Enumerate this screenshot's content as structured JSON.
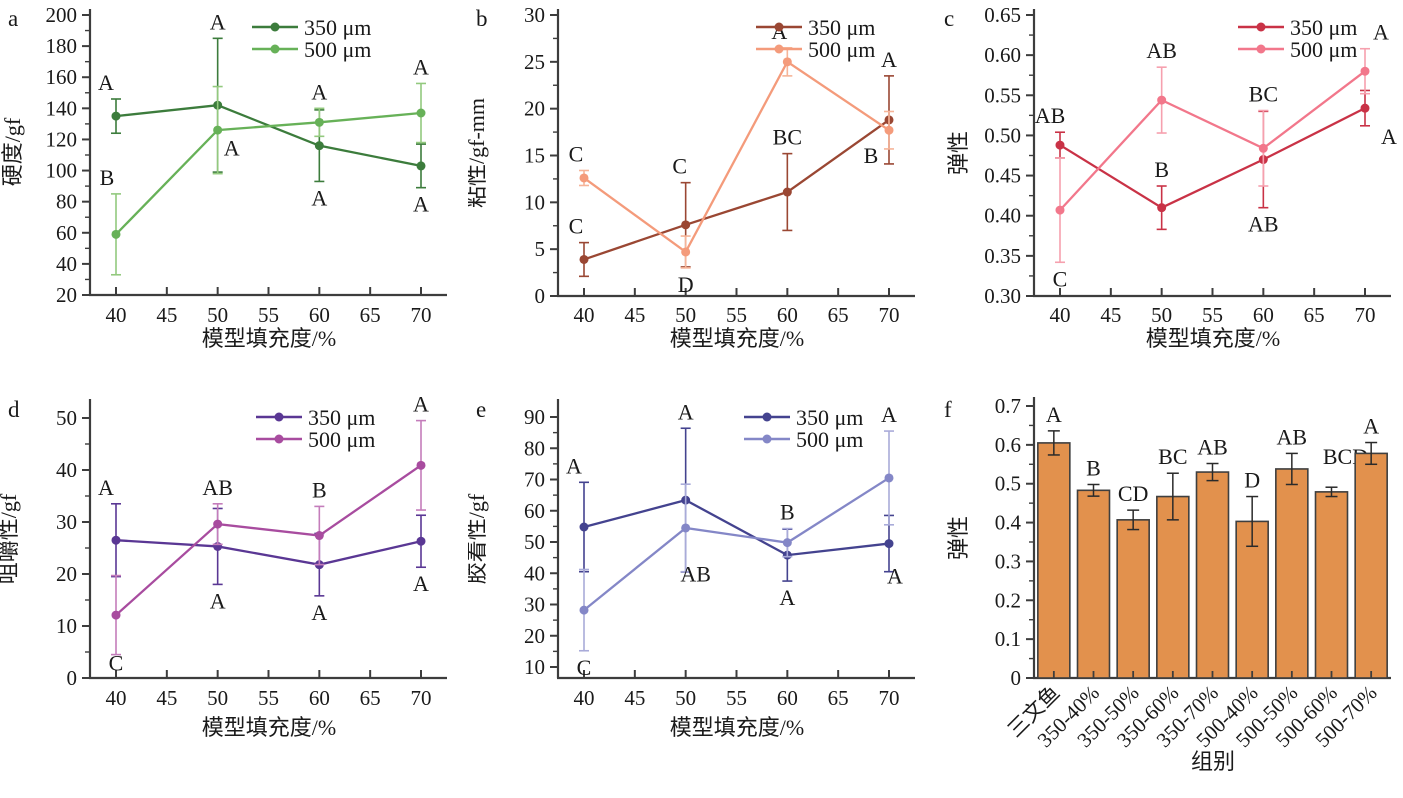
{
  "figure": {
    "background": "#ffffff",
    "text_color": "#1a1a1a",
    "axis_color": "#3d3d3d",
    "panel_labels": [
      "a",
      "b",
      "c",
      "d",
      "e",
      "f"
    ]
  },
  "chart_data": [
    {
      "id": "a",
      "type": "line",
      "panel_label": "a",
      "xlabel": "模型填充度/%",
      "ylabel": "硬度/gf",
      "x": [
        40,
        50,
        60,
        70
      ],
      "xticks": [
        40,
        45,
        50,
        55,
        60,
        65,
        70
      ],
      "ylim": [
        20,
        200
      ],
      "yticks": [
        20,
        40,
        60,
        80,
        100,
        120,
        140,
        160,
        180,
        200
      ],
      "yminor": 10,
      "ydecimals": 0,
      "grid": false,
      "legend_position": "top-right",
      "series": [
        {
          "name": "350 μm",
          "color": "#3c7c3c",
          "err_color": "#3c7c3c",
          "values": [
            135,
            142,
            116,
            103
          ],
          "errors": [
            11,
            43,
            23,
            14
          ],
          "letters": [
            {
              "t": "A",
              "pos": "above",
              "dx": -10
            },
            {
              "t": "A",
              "pos": "above"
            },
            {
              "t": "A",
              "pos": "below"
            },
            {
              "t": "A",
              "pos": "below"
            }
          ]
        },
        {
          "name": "500 μm",
          "color": "#67b158",
          "err_color": "#93c97e",
          "values": [
            59,
            126,
            131,
            137
          ],
          "errors": [
            26,
            28,
            9,
            19
          ],
          "letters": [
            {
              "t": "B",
              "pos": "above",
              "dx": -9
            },
            {
              "t": "A",
              "pos": "below",
              "dx": 14,
              "dy": -42
            },
            {
              "t": "A",
              "pos": "above"
            },
            {
              "t": "A",
              "pos": "above"
            }
          ]
        }
      ]
    },
    {
      "id": "b",
      "type": "line",
      "panel_label": "b",
      "xlabel": "模型填充度/%",
      "ylabel": "粘性/gf-mm",
      "x": [
        40,
        50,
        60,
        70
      ],
      "xticks": [
        40,
        45,
        50,
        55,
        60,
        65,
        70
      ],
      "ylim": [
        0,
        30
      ],
      "yticks": [
        0,
        5,
        10,
        15,
        20,
        25,
        30
      ],
      "yminor": 2.5,
      "ydecimals": 0,
      "grid": false,
      "legend_position": "top-right",
      "series": [
        {
          "name": "350 μm",
          "color": "#9a4733",
          "err_color": "#9a4733",
          "values": [
            3.9,
            7.6,
            11.1,
            18.8
          ],
          "errors": [
            1.8,
            4.5,
            4.1,
            4.7
          ],
          "letters": [
            {
              "t": "C",
              "pos": "above",
              "dx": -8
            },
            {
              "t": "C",
              "pos": "above",
              "dx": -6
            },
            {
              "t": "BC",
              "pos": "above"
            },
            {
              "t": "A",
              "pos": "above"
            }
          ]
        },
        {
          "name": "500 μm",
          "color": "#f49b7b",
          "err_color": "#f6b498",
          "values": [
            12.6,
            4.7,
            25.0,
            17.7
          ],
          "errors": [
            0.8,
            1.7,
            1.5,
            2.0
          ],
          "letters": [
            {
              "t": "C",
              "pos": "above",
              "dx": -8
            },
            {
              "t": "D",
              "pos": "below"
            },
            {
              "t": "A",
              "pos": "above",
              "dx": -8
            },
            {
              "t": "B",
              "pos": "below",
              "dx": -18,
              "dy": -10
            }
          ]
        }
      ]
    },
    {
      "id": "c",
      "type": "line",
      "panel_label": "c",
      "xlabel": "模型填充度/%",
      "ylabel": "弹性",
      "x": [
        40,
        50,
        60,
        70
      ],
      "xticks": [
        40,
        45,
        50,
        55,
        60,
        65,
        70
      ],
      "ylim": [
        0.3,
        0.65
      ],
      "yticks": [
        0.3,
        0.35,
        0.4,
        0.45,
        0.5,
        0.55,
        0.6,
        0.65
      ],
      "yminor": 0.025,
      "ydecimals": 2,
      "grid": false,
      "legend_position": "top-right",
      "series": [
        {
          "name": "350 μm",
          "color": "#c93246",
          "err_color": "#c93246",
          "values": [
            0.488,
            0.41,
            0.47,
            0.534
          ],
          "errors": [
            0.016,
            0.027,
            0.06,
            0.022
          ],
          "letters": [
            {
              "t": "AB",
              "pos": "above",
              "dx": -10
            },
            {
              "t": "B",
              "pos": "above"
            },
            {
              "t": "AB",
              "pos": "below"
            },
            {
              "t": "A",
              "pos": "below",
              "dx": 24,
              "dy": -6
            }
          ]
        },
        {
          "name": "500 μm",
          "color": "#f2778b",
          "err_color": "#f6a0ae",
          "values": [
            0.407,
            0.544,
            0.484,
            0.58
          ],
          "errors": [
            0.065,
            0.041,
            0.047,
            0.028
          ],
          "letters": [
            {
              "t": "C",
              "pos": "below"
            },
            {
              "t": "AB",
              "pos": "above"
            },
            {
              "t": "BC",
              "pos": "above"
            },
            {
              "t": "A",
              "pos": "above",
              "dx": 16
            }
          ]
        }
      ]
    },
    {
      "id": "d",
      "type": "line",
      "panel_label": "d",
      "xlabel": "模型填充度/%",
      "ylabel": "咀嚼性/gf",
      "x": [
        40,
        50,
        60,
        70
      ],
      "xticks": [
        40,
        45,
        50,
        55,
        60,
        65,
        70
      ],
      "ylim": [
        0,
        50
      ],
      "yticks": [
        0,
        10,
        20,
        30,
        40,
        50
      ],
      "yminor": 5,
      "ydecimals": 0,
      "grid": false,
      "legend_position": "top-right",
      "series": [
        {
          "name": "350 μm",
          "color": "#5a3794",
          "err_color": "#5a3794",
          "values": [
            26.5,
            25.3,
            21.8,
            26.3
          ],
          "errors": [
            7.0,
            7.3,
            6.0,
            5.0
          ],
          "letters": [
            {
              "t": "A",
              "pos": "above",
              "dx": -10
            },
            {
              "t": "A",
              "pos": "below"
            },
            {
              "t": "A",
              "pos": "below"
            },
            {
              "t": "A",
              "pos": "below"
            }
          ]
        },
        {
          "name": "500 μm",
          "color": "#a84c9f",
          "err_color": "#c47dbb",
          "values": [
            12.1,
            29.6,
            27.4,
            40.9
          ],
          "errors": [
            7.6,
            3.9,
            5.6,
            8.6
          ],
          "letters": [
            {
              "t": "C",
              "pos": "below",
              "dy": -8
            },
            {
              "t": "AB",
              "pos": "above"
            },
            {
              "t": "B",
              "pos": "above"
            },
            {
              "t": "A",
              "pos": "above"
            }
          ]
        }
      ]
    },
    {
      "id": "e",
      "type": "line",
      "panel_label": "e",
      "xlabel": "模型填充度/%",
      "ylabel": "胶着性/gf",
      "x": [
        40,
        50,
        60,
        70
      ],
      "xticks": [
        40,
        45,
        50,
        55,
        60,
        65,
        70
      ],
      "ylim": [
        10,
        90
      ],
      "yticks": [
        10,
        20,
        30,
        40,
        50,
        60,
        70,
        80,
        90
      ],
      "yminor": 5,
      "ydecimals": 0,
      "grid": false,
      "legend_position": "top-right",
      "series": [
        {
          "name": "350 μm",
          "color": "#44438f",
          "err_color": "#44438f",
          "values": [
            54.8,
            63.4,
            45.8,
            49.5
          ],
          "errors": [
            14.3,
            23.0,
            8.3,
            9.0
          ],
          "letters": [
            {
              "t": "A",
              "pos": "above",
              "dx": -10
            },
            {
              "t": "A",
              "pos": "above"
            },
            {
              "t": "A",
              "pos": "below"
            },
            {
              "t": "A",
              "pos": "below",
              "dx": 6,
              "dy": -12
            }
          ]
        },
        {
          "name": "500 μm",
          "color": "#8487c7",
          "err_color": "#a9abd9",
          "values": [
            28.2,
            54.5,
            49.8,
            70.5
          ],
          "errors": [
            13.0,
            14.0,
            4.5,
            15.0
          ],
          "letters": [
            {
              "t": "C",
              "pos": "below"
            },
            {
              "t": "AB",
              "pos": "below",
              "dx": 10,
              "dy": -14
            },
            {
              "t": "B",
              "pos": "above"
            },
            {
              "t": "A",
              "pos": "above"
            }
          ]
        }
      ]
    },
    {
      "id": "f",
      "type": "bar",
      "panel_label": "f",
      "xlabel": "组别",
      "ylabel": "弹性",
      "categories": [
        "三文鱼",
        "350-40%",
        "350-50%",
        "350-60%",
        "350-70%",
        "500-40%",
        "500-50%",
        "500-60%",
        "500-70%"
      ],
      "values": [
        0.605,
        0.483,
        0.407,
        0.467,
        0.53,
        0.403,
        0.538,
        0.479,
        0.578
      ],
      "errors": [
        0.031,
        0.015,
        0.025,
        0.06,
        0.022,
        0.064,
        0.04,
        0.012,
        0.028
      ],
      "letters": [
        {
          "t": "A",
          "pos": "above"
        },
        {
          "t": "B",
          "pos": "above"
        },
        {
          "t": "CD",
          "pos": "above"
        },
        {
          "t": "BC",
          "pos": "above"
        },
        {
          "t": "AB",
          "pos": "above"
        },
        {
          "t": "D",
          "pos": "above"
        },
        {
          "t": "AB",
          "pos": "above"
        },
        {
          "t": "BCD",
          "pos": "above",
          "dx": 14,
          "dy": -14
        },
        {
          "t": "A",
          "pos": "above"
        }
      ],
      "ylim": [
        0,
        0.7
      ],
      "yticks": [
        0,
        0.1,
        0.2,
        0.3,
        0.4,
        0.5,
        0.6,
        0.7
      ],
      "yminor": 0.05,
      "ydecimals": 1,
      "grid": false,
      "bar_color": "#e2914d",
      "bar_border": "#3f3f3f",
      "error_color": "#2a2a2a"
    }
  ]
}
